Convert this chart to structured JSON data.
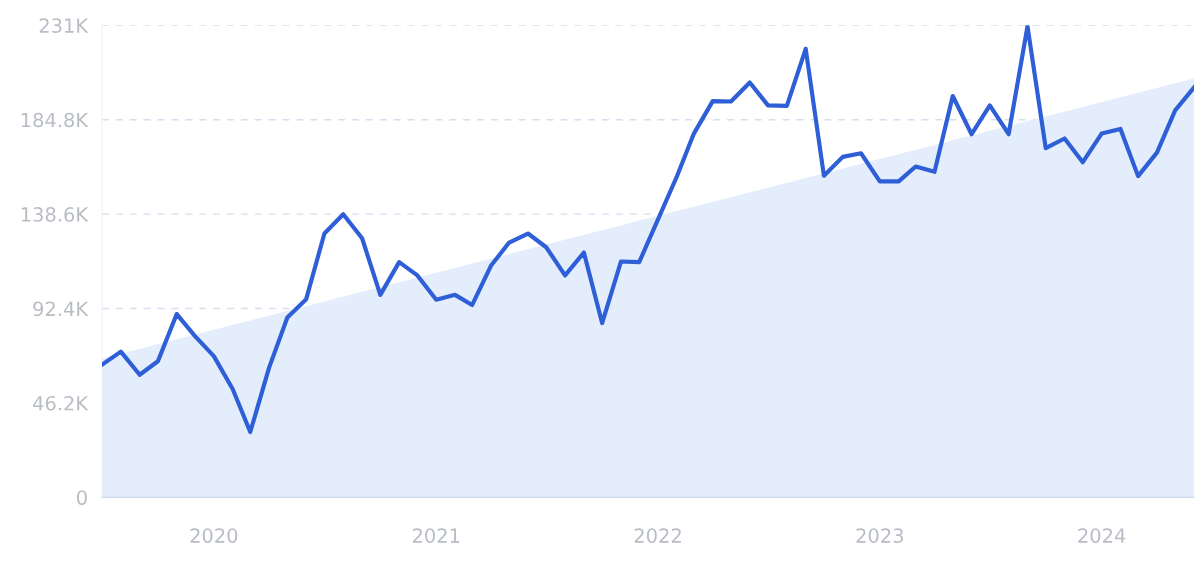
{
  "chart_data": {
    "type": "line",
    "x": [
      "2019-07",
      "2019-08",
      "2019-09",
      "2019-10",
      "2019-11",
      "2019-12",
      "2020-01",
      "2020-02",
      "2020-03",
      "2020-04",
      "2020-05",
      "2020-06",
      "2020-07",
      "2020-08",
      "2020-09",
      "2020-10",
      "2020-11",
      "2020-12",
      "2021-01",
      "2021-02",
      "2021-03",
      "2021-04",
      "2021-05",
      "2021-06",
      "2021-07",
      "2021-08",
      "2021-09",
      "2021-10",
      "2021-11",
      "2021-12",
      "2022-01",
      "2022-02",
      "2022-03",
      "2022-04",
      "2022-05",
      "2022-06",
      "2022-07",
      "2022-08",
      "2022-09",
      "2022-10",
      "2022-11",
      "2022-12",
      "2023-01",
      "2023-02",
      "2023-03",
      "2023-04",
      "2023-05",
      "2023-06",
      "2023-07",
      "2023-08",
      "2023-09",
      "2023-10",
      "2023-11",
      "2023-12",
      "2024-01",
      "2024-02",
      "2024-03",
      "2024-04",
      "2024-05",
      "2024-06"
    ],
    "series": [
      {
        "type": "area",
        "color": "#e3edfb",
        "x": [
          "2019-07",
          "2024-06"
        ],
        "values": [
          68,
          205
        ]
      },
      {
        "color": "#2f5fd6",
        "values": [
          64.9,
          71.3,
          60.0,
          66.6,
          89.7,
          78.9,
          69.1,
          53.0,
          32.0,
          63.5,
          88.0,
          97.0,
          129.1,
          138.5,
          126.8,
          99.1,
          115.1,
          108.6,
          96.7,
          99.1,
          94.1,
          113.3,
          124.7,
          129.1,
          122.4,
          108.6,
          119.8,
          85.3,
          115.4,
          115.1,
          136.0,
          157.0,
          178.0,
          193.9,
          193.7,
          203.0,
          191.8,
          191.6,
          219.5,
          157.4,
          166.6,
          168.4,
          154.6,
          154.6,
          161.9,
          159.3,
          196.4,
          177.7,
          191.8,
          177.7,
          230.5,
          170.9,
          175.6,
          164.0,
          178.0,
          180.3,
          157.2,
          168.7,
          189.4,
          200.6
        ]
      }
    ],
    "xlim": [
      "2019-07",
      "2024-06"
    ],
    "xticks": [
      {
        "value": "2020-01",
        "label": "2020"
      },
      {
        "value": "2021-01",
        "label": "2021"
      },
      {
        "value": "2022-01",
        "label": "2022"
      },
      {
        "value": "2023-01",
        "label": "2023"
      },
      {
        "value": "2024-01",
        "label": "2024"
      }
    ],
    "ylim": [
      0,
      231
    ],
    "yticks": [
      0,
      {
        "value": 46.2,
        "label": "46.2K"
      },
      {
        "value": 92.4,
        "label": "92.4K"
      },
      {
        "value": 138.6,
        "label": "138.6K"
      },
      {
        "value": 184.8,
        "label": "184.8K"
      },
      {
        "value": 231,
        "label": "231K"
      }
    ],
    "grid": "y",
    "marker": "none",
    "line_style": "solid"
  }
}
